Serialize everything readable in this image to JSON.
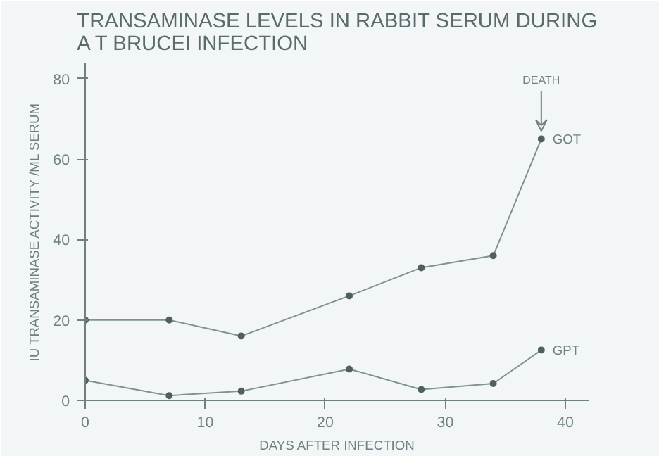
{
  "chart_data": {
    "type": "line",
    "title": "TRANSAMINASE LEVELS IN RABBIT SERUM DURING\nA T BRUCEI INFECTION",
    "xlabel": "DAYS AFTER INFECTION",
    "ylabel": "IU TRANSAMINASE ACTIVITY /ML SERUM",
    "x": [
      0,
      7,
      13,
      22,
      28,
      34,
      38
    ],
    "series": [
      {
        "name": "GOT",
        "color": "#7f9193",
        "values": [
          20,
          20,
          16,
          26,
          33,
          36,
          65
        ]
      },
      {
        "name": "GPT",
        "color": "#7f9193",
        "values": [
          5,
          1.2,
          2.3,
          7.8,
          2.7,
          4.2,
          12.5
        ]
      }
    ],
    "annotations": [
      {
        "text": "DEATH",
        "x": 38,
        "y": 65
      }
    ],
    "xlim": [
      0,
      42
    ],
    "ylim": [
      0,
      84
    ],
    "xticks": [
      0,
      10,
      20,
      30,
      40
    ],
    "yticks": [
      0,
      20,
      40,
      60,
      80
    ],
    "grid": false,
    "legend": false,
    "marker": "circle",
    "line_style": "solid"
  }
}
